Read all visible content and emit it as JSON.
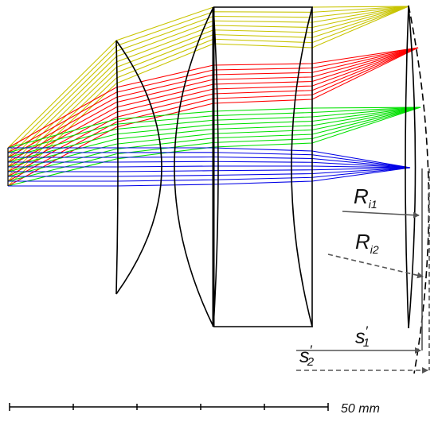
{
  "labels": {
    "r_i1": "R",
    "r_i1_sub": "i1",
    "r_i2": "R",
    "r_i2_sub": "i2",
    "s1": "s",
    "s1_sub": "1",
    "s1_prime": "′",
    "s2": "s",
    "s2_sub": "2",
    "s2_prime": "′",
    "scale": "50 mm"
  },
  "colors": {
    "bundle_1": "#c8c400",
    "bundle_2": "#ff0000",
    "bundle_3": "#00e000",
    "bundle_4": "#0000e6",
    "lens": "#000000",
    "arrow_gray": "#555555"
  }
}
